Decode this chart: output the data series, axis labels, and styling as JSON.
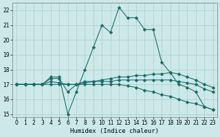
{
  "xlabel": "Humidex (Indice chaleur)",
  "bg_color": "#cce8e8",
  "grid_color": "#aacccc",
  "line_color": "#1a6b6b",
  "xlim": [
    -0.5,
    23.5
  ],
  "ylim": [
    14.8,
    22.5
  ],
  "xticks": [
    0,
    1,
    2,
    3,
    4,
    5,
    6,
    7,
    8,
    9,
    10,
    11,
    12,
    13,
    14,
    15,
    16,
    17,
    18,
    19,
    20,
    21,
    22,
    23
  ],
  "yticks": [
    15,
    16,
    17,
    18,
    19,
    20,
    21,
    22
  ],
  "series": [
    {
      "x": [
        0,
        1,
        2,
        3,
        4,
        5,
        6,
        7,
        8,
        9,
        10,
        11,
        12,
        13,
        14,
        15,
        16,
        17,
        18,
        19,
        20,
        21,
        22,
        23
      ],
      "y": [
        17.0,
        17.0,
        17.0,
        17.0,
        17.5,
        17.5,
        15.0,
        16.5,
        18.0,
        19.5,
        21.0,
        20.5,
        22.2,
        21.5,
        21.5,
        20.7,
        20.7,
        18.5,
        17.8,
        17.0,
        16.8,
        16.5,
        15.5,
        15.3
      ]
    },
    {
      "x": [
        0,
        1,
        2,
        3,
        4,
        5,
        6,
        7,
        8,
        9,
        10,
        11,
        12,
        13,
        14,
        15,
        16,
        17,
        18,
        19,
        20,
        21,
        22,
        23
      ],
      "y": [
        17.0,
        17.0,
        17.0,
        17.0,
        17.0,
        17.0,
        17.0,
        17.0,
        17.0,
        17.0,
        17.0,
        17.0,
        17.0,
        16.9,
        16.8,
        16.6,
        16.5,
        16.3,
        16.2,
        16.0,
        15.8,
        15.7,
        15.5,
        15.3
      ]
    },
    {
      "x": [
        0,
        1,
        2,
        3,
        4,
        5,
        6,
        7,
        8,
        9,
        10,
        11,
        12,
        13,
        14,
        15,
        16,
        17,
        18,
        19,
        20,
        21,
        22,
        23
      ],
      "y": [
        17.0,
        17.0,
        17.0,
        17.0,
        17.2,
        17.1,
        17.0,
        17.0,
        17.1,
        17.2,
        17.3,
        17.4,
        17.5,
        17.5,
        17.6,
        17.6,
        17.7,
        17.7,
        17.8,
        17.7,
        17.5,
        17.3,
        17.0,
        16.8
      ]
    },
    {
      "x": [
        0,
        1,
        2,
        3,
        4,
        5,
        6,
        7,
        8,
        9,
        10,
        11,
        12,
        13,
        14,
        15,
        16,
        17,
        18,
        19,
        20,
        21,
        22,
        23
      ],
      "y": [
        17.0,
        17.0,
        17.0,
        17.0,
        17.4,
        17.4,
        16.5,
        17.0,
        17.2,
        17.2,
        17.2,
        17.2,
        17.3,
        17.3,
        17.3,
        17.3,
        17.3,
        17.3,
        17.3,
        17.2,
        17.1,
        17.0,
        16.7,
        16.5
      ]
    }
  ]
}
